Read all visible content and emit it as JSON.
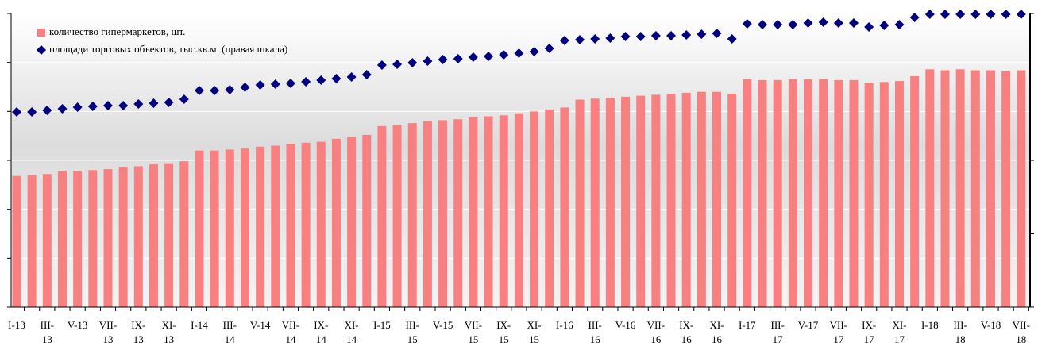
{
  "chart_data": {
    "type": "bar",
    "categories": [
      "I-13",
      null,
      "III-13",
      null,
      "V-13",
      null,
      "VII-13",
      null,
      "IX-13",
      null,
      "XI-13",
      null,
      "I-14",
      null,
      "III-14",
      null,
      "V-14",
      null,
      "VII-14",
      null,
      "IX-14",
      null,
      "XI-14",
      null,
      "I-15",
      null,
      "III-15",
      null,
      "V-15",
      null,
      "VII-15",
      null,
      "IX-15",
      null,
      "XI-15",
      null,
      "I-16",
      null,
      "III-16",
      null,
      "V-16",
      null,
      "VII-16",
      null,
      "IX-16",
      null,
      "XI-16",
      null,
      "I-17",
      null,
      "III-17",
      null,
      "V-17",
      null,
      "VII-17",
      null,
      "IX-17",
      null,
      "XI-17",
      null,
      "I-18",
      null,
      "III-18",
      null,
      "V-18",
      null,
      "VII-18"
    ],
    "series": [
      {
        "name": "количество гипермаркетов, шт.",
        "color": "#f88080",
        "values": [
          134,
          135,
          136,
          139,
          139,
          140,
          141,
          143,
          144,
          146,
          147,
          149,
          160,
          160,
          161,
          162,
          164,
          165,
          167,
          168,
          169,
          172,
          174,
          176,
          185,
          186,
          188,
          190,
          191,
          192,
          194,
          195,
          196,
          198,
          200,
          202,
          204,
          212,
          213,
          214,
          215,
          216,
          217,
          218,
          219,
          220,
          220,
          218,
          233,
          232,
          232,
          233,
          233,
          233,
          232,
          232,
          229,
          230,
          231,
          236,
          243,
          242,
          243,
          242,
          242,
          241,
          242
        ]
      },
      {
        "name": "площади торговых объектов, тыс.кв.м. (правая шкала)",
        "color": "#000080",
        "axis": "y2",
        "values": [
          2659,
          2659,
          2681,
          2703,
          2724,
          2735,
          2746,
          2746,
          2768,
          2778,
          2789,
          2832,
          2951,
          2951,
          2962,
          2995,
          3027,
          3038,
          3049,
          3070,
          3092,
          3114,
          3135,
          3168,
          3297,
          3308,
          3330,
          3351,
          3373,
          3384,
          3405,
          3416,
          3438,
          3459,
          3481,
          3524,
          3632,
          3643,
          3654,
          3665,
          3686,
          3686,
          3697,
          3697,
          3708,
          3719,
          3730,
          3654,
          3859,
          3849,
          3849,
          3849,
          3870,
          3881,
          3870,
          3870,
          3816,
          3838,
          3849,
          3946,
          3989,
          3989,
          3989,
          3989,
          3989,
          3989,
          3989
        ]
      }
    ],
    "ylim": [
      0,
      300
    ],
    "yticks": [
      0,
      50,
      100,
      150,
      200,
      250,
      300
    ],
    "y2lim": [
      0,
      4000
    ],
    "y2ticks": [
      0,
      1000,
      2000,
      3000,
      4000
    ],
    "grid": true,
    "legend": "top-left"
  }
}
